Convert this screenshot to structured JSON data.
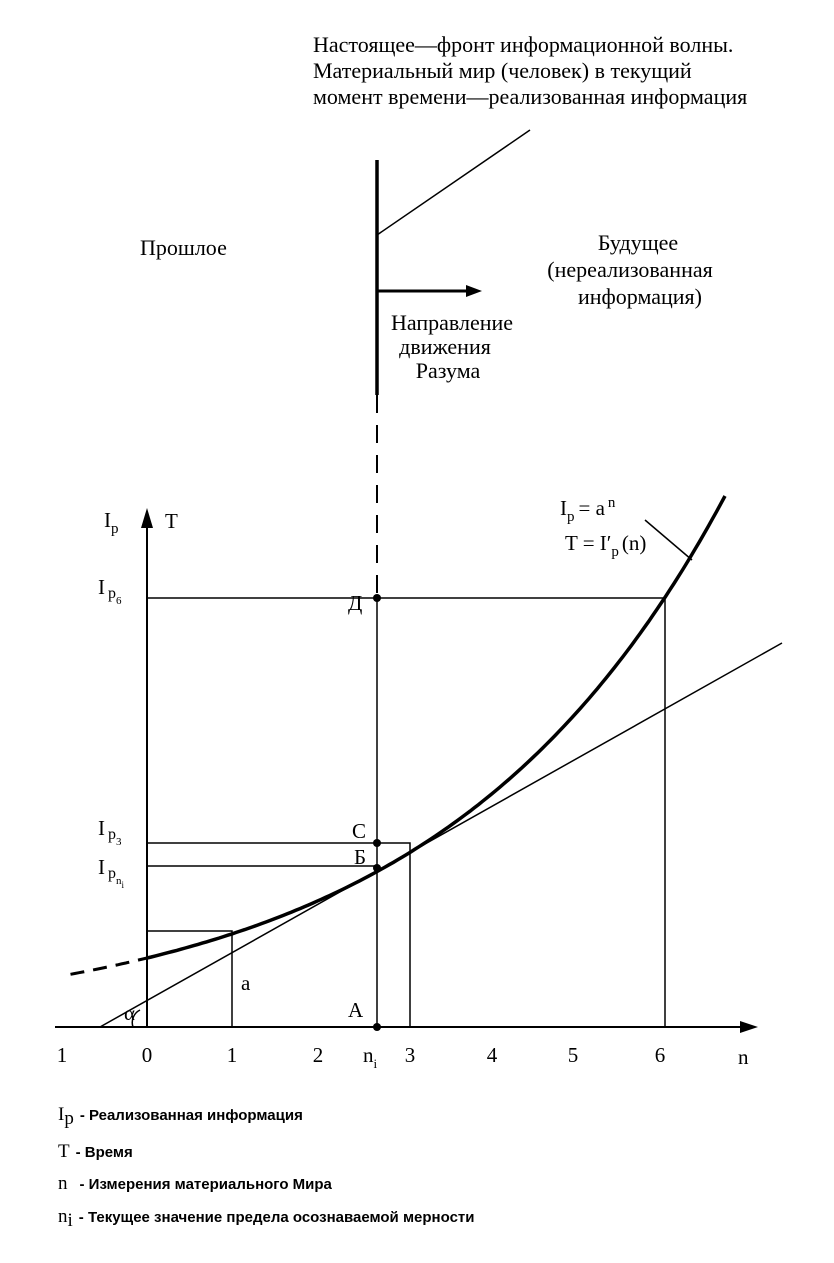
{
  "header": {
    "lines": [
      "Настоящее—фронт информационной волны.",
      "Материальный мир (человек) в текущий",
      "момент времени—реализованная информация"
    ]
  },
  "past": "Прошлое",
  "future": {
    "lines": [
      "Будущее",
      "(нереализованная",
      "информация)"
    ]
  },
  "direction": {
    "lines": [
      "Направление",
      "движения",
      "Разума"
    ]
  },
  "formula": {
    "line1": {
      "base": "I",
      "sub": "p",
      "rest": "= a",
      "sup": "n"
    },
    "line2": {
      "base": "T = I′",
      "sub": "p",
      "rest": "(n)"
    }
  },
  "axes": {
    "y": {
      "base": "I",
      "sub": "p"
    },
    "t": "T",
    "x": "n"
  },
  "y_labels": [
    {
      "base": "I",
      "sub": "p",
      "subsub": "6"
    },
    {
      "base": "I",
      "sub": "p",
      "subsub": "3"
    },
    {
      "base": "I",
      "sub": "p",
      "subsub": "n",
      "subsubsub": "i"
    }
  ],
  "points": {
    "d": "Д",
    "c": "С",
    "b": "Б",
    "a_point": "А",
    "a_seg": "a",
    "alpha": "α"
  },
  "x_labels": [
    "1",
    "0",
    "1",
    "2",
    {
      "base": "n",
      "sub": "i"
    },
    "3",
    "4",
    "5",
    "6"
  ],
  "legend": [
    {
      "symbol": "I",
      "symbol_sub": "p",
      "text": "- Реализованная информация"
    },
    {
      "symbol": "T",
      "text": "- Время"
    },
    {
      "symbol": "n",
      "text": "- Измерения материального Мира"
    },
    {
      "symbol": "n",
      "symbol_sub": "i",
      "text": "- Текущее значение предела осознаваемой мерности"
    }
  ]
}
